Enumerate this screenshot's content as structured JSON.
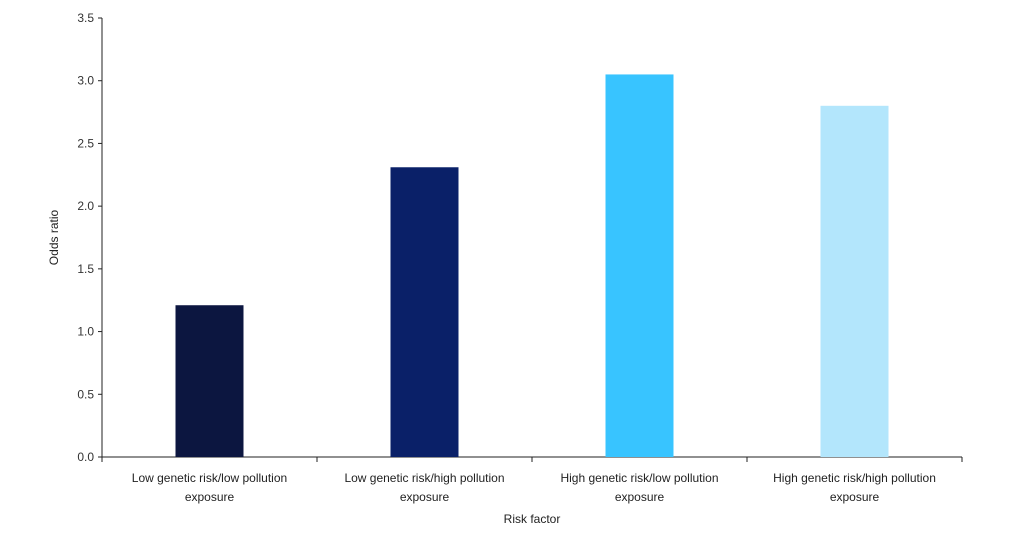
{
  "chart_data": {
    "type": "bar",
    "title": "",
    "xlabel": "Risk factor",
    "ylabel": "Odds ratio",
    "ylim": [
      0,
      3.5
    ],
    "yticks": [
      "0.0",
      "0.5",
      "1.0",
      "1.5",
      "2.0",
      "2.5",
      "3.0",
      "3.5"
    ],
    "categories": [
      [
        "Low genetic risk/low pollution",
        "exposure"
      ],
      [
        "Low genetic risk/high pollution",
        "exposure"
      ],
      [
        "High genetic risk/low pollution",
        "exposure"
      ],
      [
        "High genetic risk/high pollution",
        "exposure"
      ]
    ],
    "values": [
      1.21,
      2.31,
      3.05,
      2.8
    ],
    "colors": [
      "#0c1640",
      "#0a2068",
      "#38c4ff",
      "#b3e6fc"
    ],
    "grid": false
  }
}
